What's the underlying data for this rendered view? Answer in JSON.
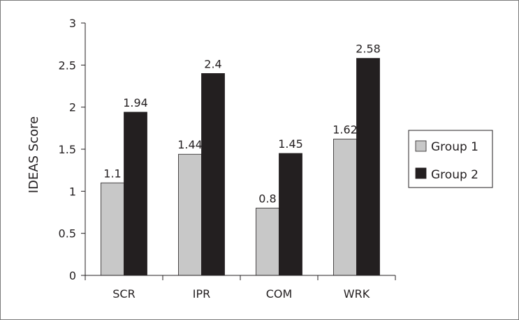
{
  "chart_data": {
    "type": "bar",
    "title": "",
    "xlabel": "",
    "ylabel": "IDEAS Score",
    "ylim": [
      0,
      3
    ],
    "yticks": [
      "0",
      "0.5",
      "1",
      "1.5",
      "2",
      "2.5",
      "3"
    ],
    "categories": [
      "SCR",
      "IPR",
      "COM",
      "WRK"
    ],
    "series": [
      {
        "name": "Group 1",
        "values": [
          1.1,
          1.44,
          0.8,
          1.62
        ],
        "labels": [
          "1.1",
          "1.44",
          "0.8",
          "1.62"
        ],
        "color": "#c8c8c8"
      },
      {
        "name": "Group 2",
        "values": [
          1.94,
          2.4,
          1.45,
          2.58
        ],
        "labels": [
          "1.94",
          "2.4",
          "1.45",
          "2.58"
        ],
        "color": "#231f20"
      }
    ],
    "grid": false,
    "legend": "right"
  }
}
